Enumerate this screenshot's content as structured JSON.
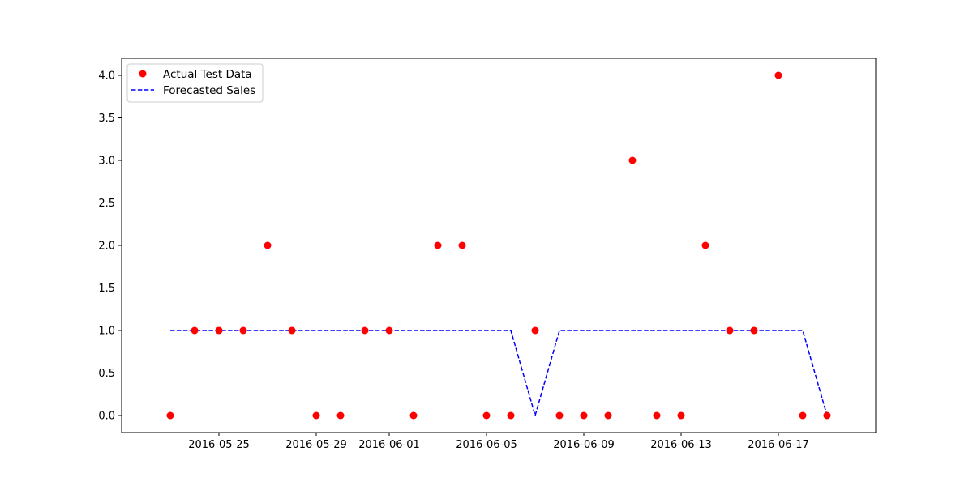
{
  "chart_data": {
    "type": "scatter",
    "title": "",
    "xlabel": "",
    "ylabel": "",
    "x_type": "date",
    "xlim": [
      "2016-05-21",
      "2016-06-21"
    ],
    "ylim": [
      -0.2,
      4.2
    ],
    "grid": false,
    "legend_position": "top-left",
    "x_ticks": [
      "2016-05-25",
      "2016-05-29",
      "2016-06-01",
      "2016-06-05",
      "2016-06-09",
      "2016-06-13",
      "2016-06-17"
    ],
    "y_ticks": [
      "0.0",
      "0.5",
      "1.0",
      "1.5",
      "2.0",
      "2.5",
      "3.0",
      "3.5",
      "4.0"
    ],
    "dates": [
      "2016-05-23",
      "2016-05-24",
      "2016-05-25",
      "2016-05-26",
      "2016-05-27",
      "2016-05-28",
      "2016-05-29",
      "2016-05-30",
      "2016-05-31",
      "2016-06-01",
      "2016-06-02",
      "2016-06-03",
      "2016-06-04",
      "2016-06-05",
      "2016-06-06",
      "2016-06-07",
      "2016-06-08",
      "2016-06-09",
      "2016-06-10",
      "2016-06-11",
      "2016-06-12",
      "2016-06-13",
      "2016-06-14",
      "2016-06-15",
      "2016-06-16",
      "2016-06-17",
      "2016-06-18",
      "2016-06-19"
    ],
    "series": [
      {
        "name": "Actual Test Data",
        "style": "markers",
        "color": "#ff0000",
        "values": [
          0,
          1,
          1,
          1,
          2,
          1,
          0,
          0,
          1,
          1,
          0,
          2,
          2,
          0,
          0,
          1,
          0,
          0,
          0,
          3,
          0,
          0,
          2,
          1,
          1,
          4,
          0,
          0
        ]
      },
      {
        "name": "Forecasted Sales",
        "style": "dashed-line",
        "color": "#0000ff",
        "values": [
          1,
          1,
          1,
          1,
          1,
          1,
          1,
          1,
          1,
          1,
          1,
          1,
          1,
          1,
          1,
          0,
          1,
          1,
          1,
          1,
          1,
          1,
          1,
          1,
          1,
          1,
          1,
          0
        ]
      }
    ]
  }
}
